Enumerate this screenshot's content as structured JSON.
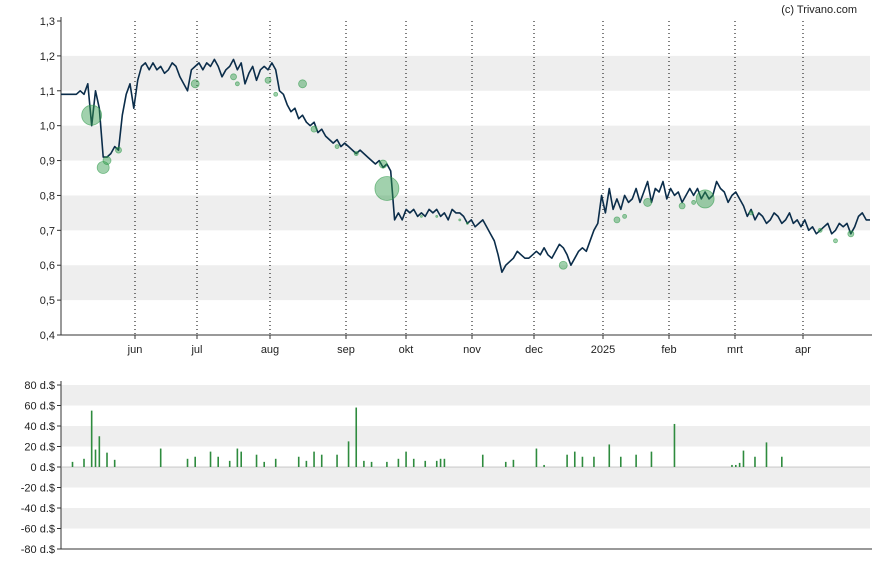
{
  "credit": "(c) Trivano.com",
  "colors": {
    "band": "#eeeeee",
    "price_line": "#0b2d4a",
    "bubble": "#2e9a4a",
    "volume_bar": "#2e8b3e",
    "axis": "#333333",
    "grid": "#000000"
  },
  "chart_data": [
    {
      "type": "line",
      "title": "",
      "ylim": [
        0.4,
        1.3
      ],
      "y_ticks": [
        "1,3",
        "1,2",
        "1,1",
        "1,0",
        "0,9",
        "0,8",
        "0,7",
        "0,6",
        "0,5",
        "0,4"
      ],
      "x_ticks": [
        "jun",
        "jul",
        "aug",
        "sep",
        "okt",
        "nov",
        "dec",
        "2025",
        "feb",
        "mrt",
        "apr"
      ],
      "grid": true,
      "series": [
        {
          "values": [
            1.09,
            1.09,
            1.09,
            1.09,
            1.09,
            1.1,
            1.09,
            1.12,
            1.0,
            1.1,
            1.05,
            0.91,
            0.91,
            0.92,
            0.94,
            0.93,
            1.03,
            1.09,
            1.12,
            1.05,
            1.13,
            1.17,
            1.18,
            1.16,
            1.18,
            1.16,
            1.17,
            1.15,
            1.16,
            1.18,
            1.17,
            1.14,
            1.12,
            1.1,
            1.16,
            1.17,
            1.18,
            1.16,
            1.18,
            1.17,
            1.19,
            1.17,
            1.14,
            1.16,
            1.17,
            1.19,
            1.16,
            1.18,
            1.12,
            1.15,
            1.17,
            1.13,
            1.16,
            1.17,
            1.16,
            1.18,
            1.16,
            1.1,
            1.09,
            1.06,
            1.04,
            1.05,
            1.02,
            1.03,
            1.01,
            1.0,
            1.01,
            0.98,
            0.99,
            0.97,
            0.96,
            0.95,
            0.96,
            0.94,
            0.95,
            0.94,
            0.93,
            0.92,
            0.93,
            0.92,
            0.91,
            0.9,
            0.89,
            0.9,
            0.88,
            0.89,
            0.87,
            0.73,
            0.75,
            0.73,
            0.76,
            0.75,
            0.76,
            0.74,
            0.75,
            0.74,
            0.76,
            0.75,
            0.76,
            0.74,
            0.75,
            0.73,
            0.76,
            0.75,
            0.75,
            0.74,
            0.72,
            0.73,
            0.71,
            0.72,
            0.73,
            0.71,
            0.69,
            0.67,
            0.63,
            0.58,
            0.6,
            0.61,
            0.62,
            0.64,
            0.63,
            0.62,
            0.62,
            0.63,
            0.64,
            0.63,
            0.65,
            0.63,
            0.62,
            0.64,
            0.66,
            0.65,
            0.63,
            0.6,
            0.62,
            0.64,
            0.65,
            0.64,
            0.67,
            0.7,
            0.72,
            0.8,
            0.75,
            0.82,
            0.76,
            0.79,
            0.76,
            0.8,
            0.78,
            0.79,
            0.82,
            0.78,
            0.81,
            0.84,
            0.78,
            0.82,
            0.81,
            0.84,
            0.79,
            0.82,
            0.8,
            0.81,
            0.78,
            0.8,
            0.82,
            0.8,
            0.82,
            0.79,
            0.81,
            0.79,
            0.8,
            0.84,
            0.82,
            0.81,
            0.78,
            0.8,
            0.81,
            0.79,
            0.77,
            0.74,
            0.76,
            0.73,
            0.75,
            0.74,
            0.72,
            0.73,
            0.75,
            0.74,
            0.72,
            0.73,
            0.75,
            0.72,
            0.73,
            0.71,
            0.73,
            0.7,
            0.71,
            0.69,
            0.7,
            0.71,
            0.72,
            0.69,
            0.7,
            0.72,
            0.71,
            0.72,
            0.69,
            0.71,
            0.74,
            0.75,
            0.73,
            0.73
          ]
        }
      ],
      "bubbles": [
        {
          "i": 8,
          "y": 1.03,
          "size": 10
        },
        {
          "i": 11,
          "y": 0.88,
          "size": 6
        },
        {
          "i": 12,
          "y": 0.9,
          "size": 4
        },
        {
          "i": 15,
          "y": 0.93,
          "size": 3
        },
        {
          "i": 35,
          "y": 1.12,
          "size": 4
        },
        {
          "i": 45,
          "y": 1.14,
          "size": 3
        },
        {
          "i": 46,
          "y": 1.12,
          "size": 2
        },
        {
          "i": 54,
          "y": 1.13,
          "size": 3
        },
        {
          "i": 56,
          "y": 1.09,
          "size": 2
        },
        {
          "i": 63,
          "y": 1.12,
          "size": 4
        },
        {
          "i": 66,
          "y": 0.99,
          "size": 3
        },
        {
          "i": 72,
          "y": 0.94,
          "size": 2
        },
        {
          "i": 77,
          "y": 0.92,
          "size": 2
        },
        {
          "i": 84,
          "y": 0.89,
          "size": 4
        },
        {
          "i": 85,
          "y": 0.82,
          "size": 12
        },
        {
          "i": 94,
          "y": 0.74,
          "size": 1
        },
        {
          "i": 98,
          "y": 0.74,
          "size": 1
        },
        {
          "i": 104,
          "y": 0.73,
          "size": 1
        },
        {
          "i": 106,
          "y": 0.72,
          "size": 1
        },
        {
          "i": 131,
          "y": 0.6,
          "size": 4
        },
        {
          "i": 145,
          "y": 0.73,
          "size": 3
        },
        {
          "i": 147,
          "y": 0.74,
          "size": 2
        },
        {
          "i": 153,
          "y": 0.78,
          "size": 4
        },
        {
          "i": 162,
          "y": 0.77,
          "size": 3
        },
        {
          "i": 165,
          "y": 0.78,
          "size": 2
        },
        {
          "i": 168,
          "y": 0.79,
          "size": 9
        },
        {
          "i": 180,
          "y": 0.75,
          "size": 2
        },
        {
          "i": 198,
          "y": 0.7,
          "size": 2
        },
        {
          "i": 202,
          "y": 0.67,
          "size": 2
        },
        {
          "i": 206,
          "y": 0.69,
          "size": 3
        }
      ]
    },
    {
      "type": "bar",
      "title": "",
      "ylim": [
        -80,
        80
      ],
      "y_ticks": [
        "80 d.$",
        "60 d.$",
        "40 d.$",
        "20 d.$",
        "0 d.$",
        "-20 d.$",
        "-40 d.$",
        "-60 d.$",
        "-80 d.$"
      ],
      "grid": true,
      "series": [
        {
          "points": [
            [
              3,
              5
            ],
            [
              6,
              8
            ],
            [
              8,
              55
            ],
            [
              9,
              17
            ],
            [
              10,
              30
            ],
            [
              12,
              14
            ],
            [
              14,
              7
            ],
            [
              26,
              18
            ],
            [
              33,
              8
            ],
            [
              35,
              10
            ],
            [
              39,
              15
            ],
            [
              41,
              10
            ],
            [
              44,
              6
            ],
            [
              46,
              18
            ],
            [
              47,
              15
            ],
            [
              51,
              12
            ],
            [
              53,
              5
            ],
            [
              56,
              8
            ],
            [
              62,
              10
            ],
            [
              64,
              6
            ],
            [
              66,
              15
            ],
            [
              68,
              12
            ],
            [
              72,
              12
            ],
            [
              75,
              25
            ],
            [
              77,
              58
            ],
            [
              79,
              6
            ],
            [
              81,
              5
            ],
            [
              85,
              5
            ],
            [
              88,
              8
            ],
            [
              90,
              15
            ],
            [
              92,
              8
            ],
            [
              95,
              6
            ],
            [
              98,
              6
            ],
            [
              99,
              8
            ],
            [
              100,
              8
            ],
            [
              110,
              12
            ],
            [
              116,
              5
            ],
            [
              118,
              7
            ],
            [
              124,
              18
            ],
            [
              126,
              2
            ],
            [
              132,
              12
            ],
            [
              134,
              15
            ],
            [
              136,
              10
            ],
            [
              139,
              10
            ],
            [
              143,
              22
            ],
            [
              146,
              10
            ],
            [
              150,
              12
            ],
            [
              154,
              15
            ],
            [
              160,
              42
            ],
            [
              175,
              2
            ],
            [
              176,
              2
            ],
            [
              177,
              4
            ],
            [
              178,
              16
            ],
            [
              181,
              10
            ],
            [
              184,
              24
            ],
            [
              188,
              10
            ]
          ]
        }
      ]
    }
  ]
}
